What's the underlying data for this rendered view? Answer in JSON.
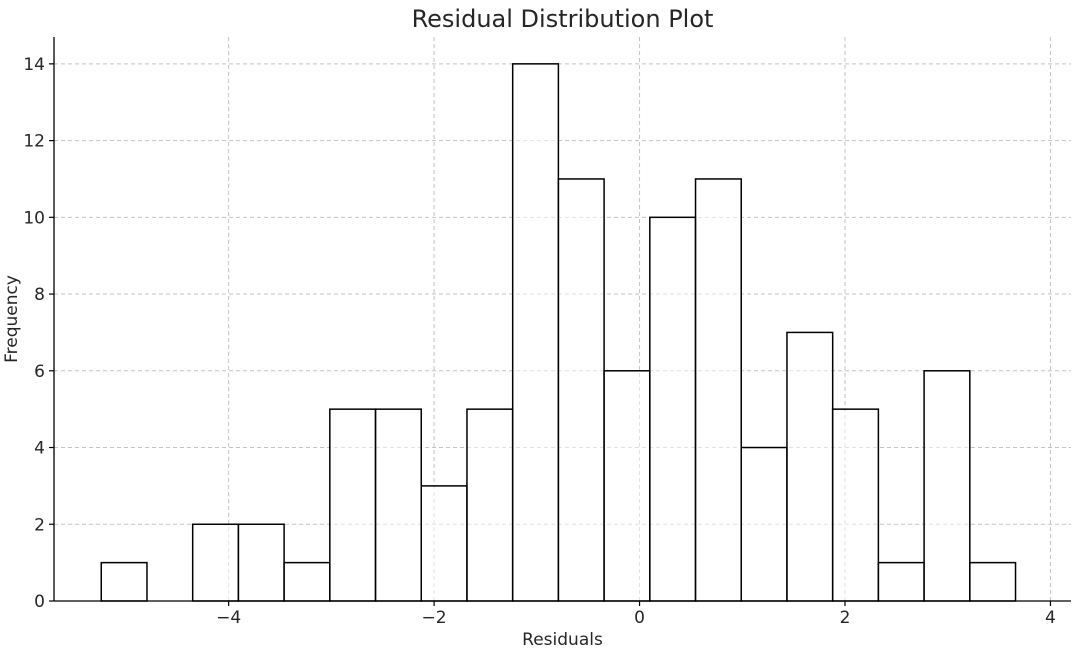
{
  "chart_data": {
    "type": "bar",
    "subtype": "histogram",
    "title": "Residual Distribution Plot",
    "xlabel": "Residuals",
    "ylabel": "Frequency",
    "xlim": [
      -5.7,
      4.2
    ],
    "ylim": [
      0,
      14.7
    ],
    "xticks": [
      -4,
      -2,
      0,
      2,
      4
    ],
    "xtick_labels": [
      "−4",
      "−2",
      "0",
      "2",
      "4"
    ],
    "yticks": [
      0,
      2,
      4,
      6,
      8,
      10,
      12,
      14
    ],
    "ytick_labels": [
      "0",
      "2",
      "4",
      "6",
      "8",
      "10",
      "12",
      "14"
    ],
    "bin_edges": [
      -5.24,
      -4.795,
      -4.35,
      -3.905,
      -3.46,
      -3.015,
      -2.57,
      -2.125,
      -1.68,
      -1.235,
      -0.79,
      -0.345,
      0.1,
      0.545,
      0.99,
      1.435,
      1.88,
      2.325,
      2.77,
      3.215,
      3.66
    ],
    "values": [
      1,
      0,
      2,
      2,
      1,
      5,
      5,
      3,
      5,
      14,
      11,
      6,
      10,
      11,
      4,
      7,
      5,
      1,
      6,
      1
    ],
    "grid": true,
    "colors": {
      "bar_fill": "#ffffff",
      "bar_edge": "#000000",
      "grid": "#b0b0b0",
      "text": "#262626"
    }
  }
}
